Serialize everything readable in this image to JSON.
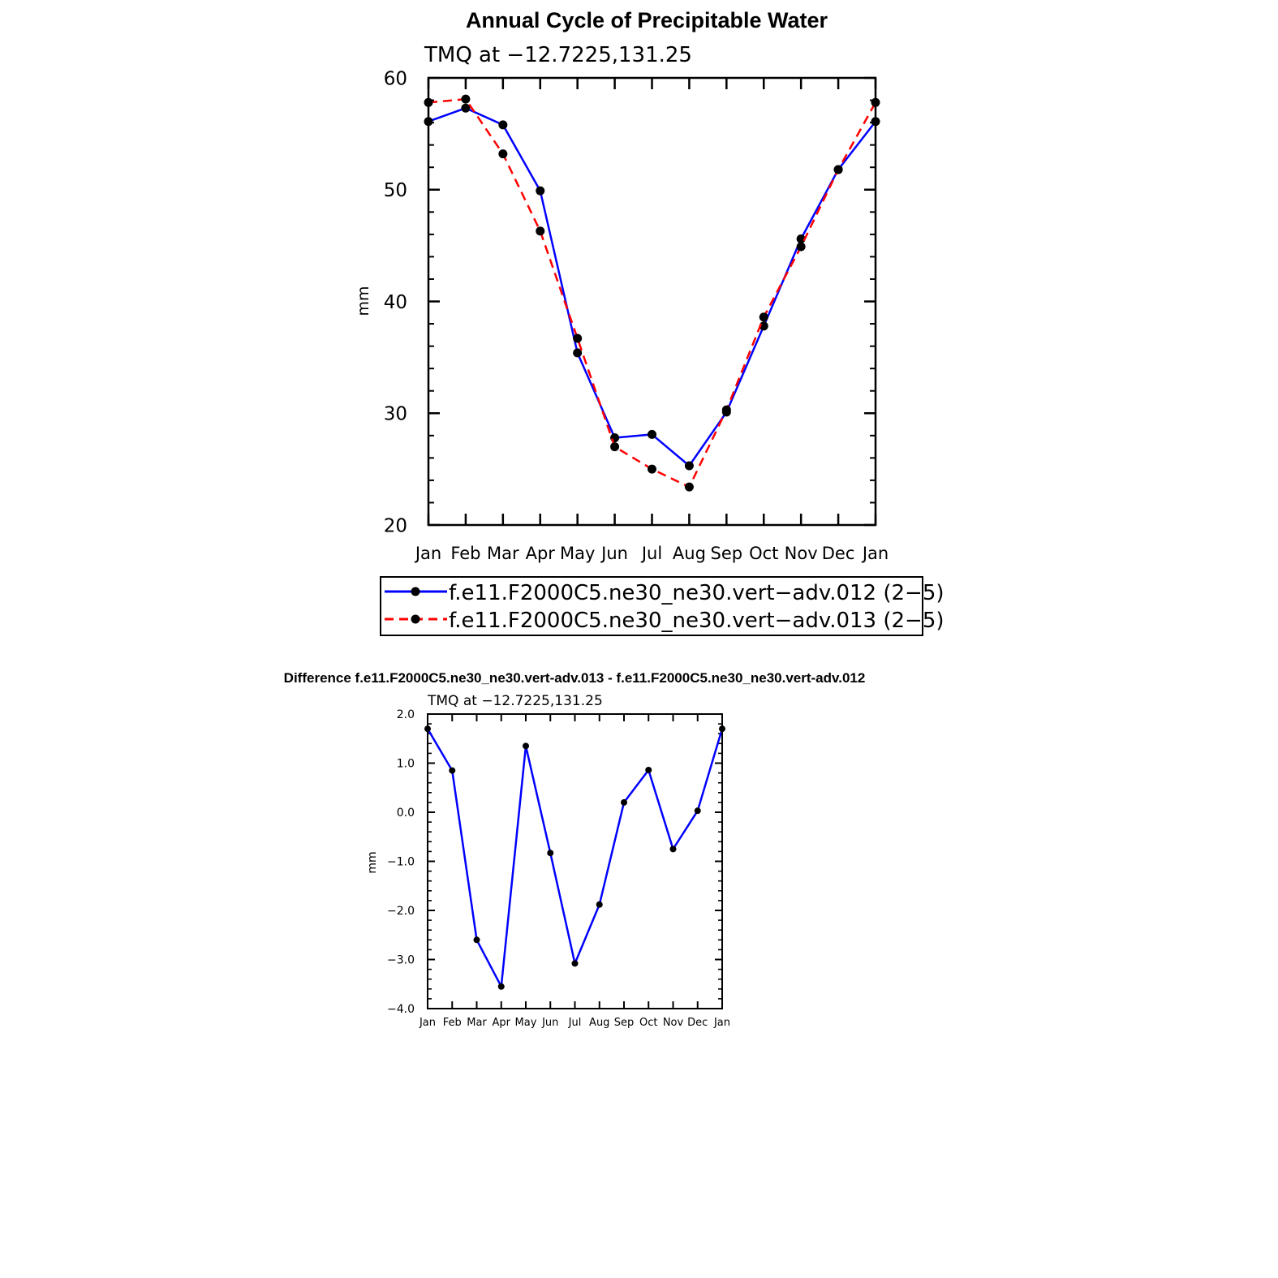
{
  "colors": {
    "series_012": "#0000ff",
    "series_013": "#ff0000",
    "marker": "#000000",
    "axis": "#000000"
  },
  "chart_data": [
    {
      "type": "line",
      "title": "Annual Cycle of Precipitable Water",
      "subtitle": "TMQ at −12.7225,131.25",
      "xlabel": "",
      "ylabel": "mm",
      "categories": [
        "Jan",
        "Feb",
        "Mar",
        "Apr",
        "May",
        "Jun",
        "Jul",
        "Aug",
        "Sep",
        "Oct",
        "Nov",
        "Dec",
        "Jan"
      ],
      "ylim": [
        20,
        60
      ],
      "yticks": [
        20,
        30,
        40,
        50,
        60
      ],
      "ytick_labels": [
        "20",
        "30",
        "40",
        "50",
        "60"
      ],
      "legend_position": "bottom",
      "series": [
        {
          "name": "f.e11.F2000C5.ne30_ne30.vert−adv.012 (2−5)",
          "style": "solid",
          "values": [
            56.1,
            57.3,
            55.8,
            49.9,
            35.4,
            27.8,
            28.1,
            25.3,
            30.1,
            37.8,
            45.6,
            51.8,
            56.1
          ]
        },
        {
          "name": "f.e11.F2000C5.ne30_ne30.vert−adv.013 (2−5)",
          "style": "dashed",
          "values": [
            57.8,
            58.1,
            53.2,
            46.3,
            36.7,
            27.0,
            25.0,
            23.4,
            30.3,
            38.6,
            44.9,
            51.8,
            57.8
          ]
        }
      ]
    },
    {
      "type": "line",
      "title": "Difference f.e11.F2000C5.ne30_ne30.vert-adv.013 - f.e11.F2000C5.ne30_ne30.vert-adv.012",
      "subtitle": "TMQ at −12.7225,131.25",
      "xlabel": "",
      "ylabel": "mm",
      "categories": [
        "Jan",
        "Feb",
        "Mar",
        "Apr",
        "May",
        "Jun",
        "Jul",
        "Aug",
        "Sep",
        "Oct",
        "Nov",
        "Dec",
        "Jan"
      ],
      "ylim": [
        -4.0,
        2.0
      ],
      "yticks": [
        -4.0,
        -3.0,
        -2.0,
        -1.0,
        0.0,
        1.0,
        2.0
      ],
      "ytick_labels": [
        "−4.0",
        "−3.0",
        "−2.0",
        "−1.0",
        "0.0",
        "1.0",
        "2.0"
      ],
      "series": [
        {
          "name": "Difference",
          "style": "solid",
          "values": [
            1.7,
            0.85,
            -2.6,
            -3.55,
            1.35,
            -0.83,
            -3.08,
            -1.88,
            0.2,
            0.86,
            -0.75,
            0.03,
            1.7
          ]
        }
      ]
    }
  ]
}
